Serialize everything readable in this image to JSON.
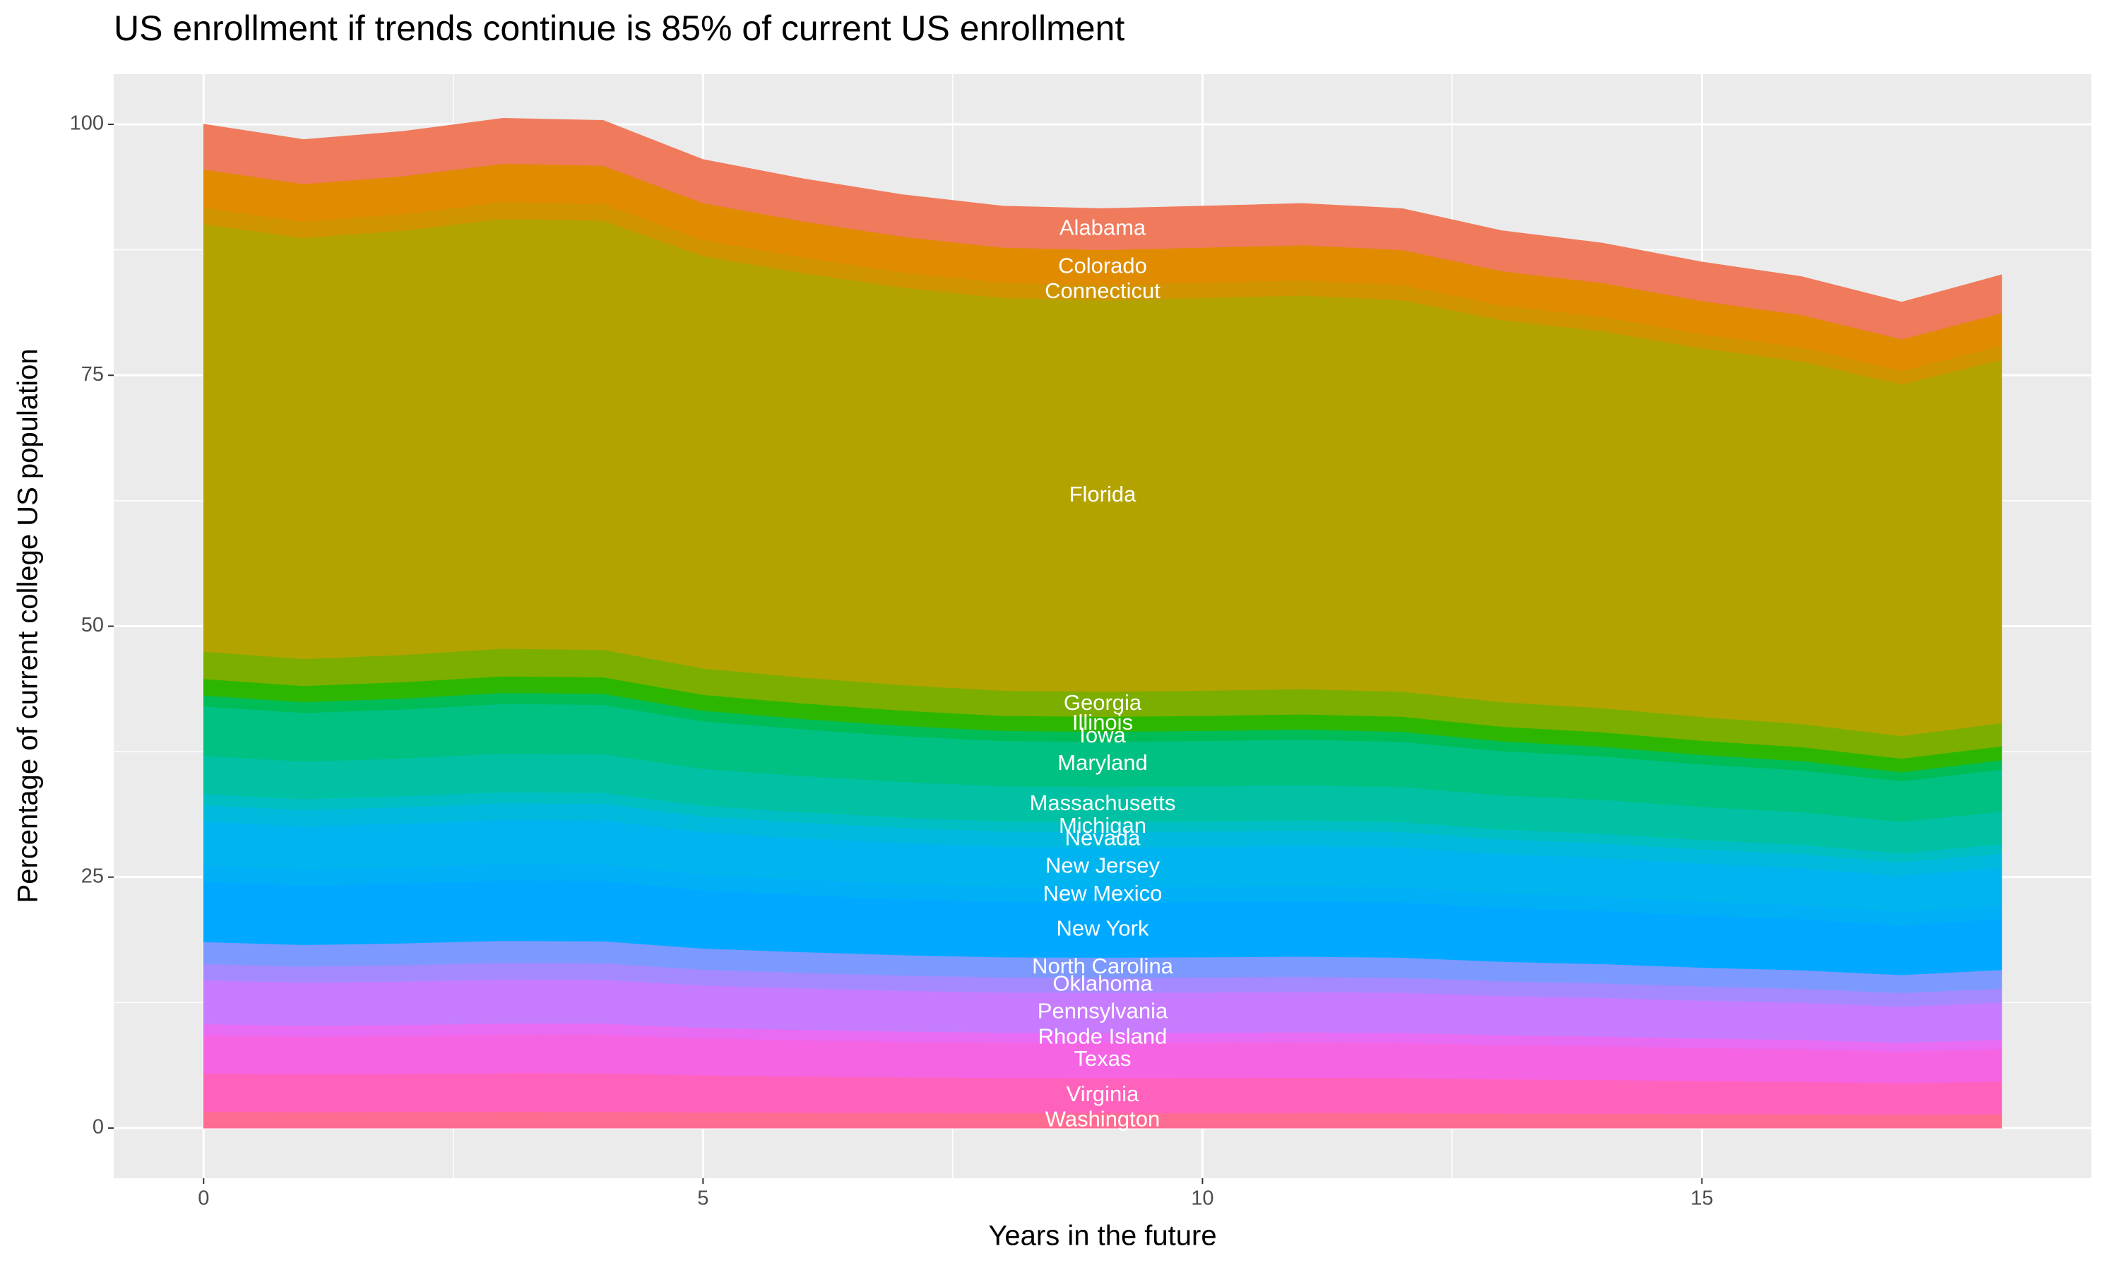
{
  "chart_data": {
    "type": "stacked-area",
    "title": "US enrollment if trends continue is 85% of current US enrollment",
    "x_label": "Years in the future",
    "y_label": "Percentage of current college US population",
    "x": [
      0,
      1,
      2,
      3,
      4,
      5,
      6,
      7,
      8,
      9,
      10,
      11,
      12,
      13,
      14,
      15,
      16,
      17,
      18
    ],
    "xlim": [
      -0.9,
      18.9
    ],
    "xticks": [
      0,
      5,
      10,
      15
    ],
    "ylim": [
      -5,
      105
    ],
    "yticks": [
      0,
      25,
      50,
      75,
      100
    ],
    "grid": true,
    "series": [
      {
        "name": "Washington",
        "color": "#FF6C91",
        "values": [
          1.64,
          1.61,
          1.63,
          1.65,
          1.64,
          1.58,
          1.55,
          1.52,
          1.5,
          1.5,
          1.5,
          1.51,
          1.5,
          1.46,
          1.44,
          1.41,
          1.39,
          1.35,
          1.39
        ]
      },
      {
        "name": "Virginia",
        "color": "#FF62BC",
        "values": [
          3.82,
          3.76,
          3.79,
          3.84,
          3.84,
          3.69,
          3.61,
          3.55,
          3.51,
          3.5,
          3.51,
          3.52,
          3.5,
          3.42,
          3.37,
          3.3,
          3.24,
          3.14,
          3.25
        ]
      },
      {
        "name": "Texas",
        "color": "#F564E3",
        "values": [
          3.82,
          3.76,
          3.79,
          3.84,
          3.84,
          3.69,
          3.61,
          3.55,
          3.51,
          3.5,
          3.51,
          3.52,
          3.5,
          3.42,
          3.37,
          3.3,
          3.24,
          3.14,
          3.25
        ]
      },
      {
        "name": "Rhode Island",
        "color": "#E76BF3",
        "values": [
          1.09,
          1.08,
          1.08,
          1.1,
          1.1,
          1.05,
          1.03,
          1.02,
          1.0,
          1.0,
          1.0,
          1.01,
          1.0,
          0.98,
          0.96,
          0.94,
          0.93,
          0.9,
          0.93
        ]
      },
      {
        "name": "Pennsylvania",
        "color": "#C77CFF",
        "values": [
          4.37,
          4.3,
          4.34,
          4.39,
          4.38,
          4.21,
          4.13,
          4.06,
          4.01,
          4.0,
          4.01,
          4.02,
          4.0,
          3.9,
          3.85,
          3.77,
          3.7,
          3.59,
          3.71
        ]
      },
      {
        "name": "Oklahoma",
        "color": "#A58AFF",
        "values": [
          1.64,
          1.61,
          1.63,
          1.65,
          1.64,
          1.58,
          1.55,
          1.52,
          1.5,
          1.5,
          1.5,
          1.51,
          1.5,
          1.46,
          1.44,
          1.41,
          1.39,
          1.35,
          1.39
        ]
      },
      {
        "name": "North Carolina",
        "color": "#7C99FF",
        "values": [
          2.18,
          2.15,
          2.17,
          2.2,
          2.19,
          2.11,
          2.07,
          2.03,
          2.01,
          2.0,
          2.01,
          2.01,
          2.0,
          1.95,
          1.93,
          1.88,
          1.85,
          1.8,
          1.86
        ]
      },
      {
        "name": "New York",
        "color": "#00A9FF",
        "values": [
          6.0,
          5.91,
          5.96,
          6.04,
          6.03,
          5.79,
          5.68,
          5.58,
          5.52,
          5.5,
          5.52,
          5.53,
          5.5,
          5.37,
          5.3,
          5.18,
          5.09,
          4.94,
          5.1
        ]
      },
      {
        "name": "New Mexico",
        "color": "#00B0F6",
        "values": [
          1.64,
          1.61,
          1.63,
          1.65,
          1.64,
          1.58,
          1.55,
          1.52,
          1.5,
          1.5,
          1.5,
          1.51,
          1.5,
          1.46,
          1.44,
          1.41,
          1.39,
          1.35,
          1.39
        ]
      },
      {
        "name": "New Jersey",
        "color": "#00B4EF",
        "values": [
          4.37,
          4.3,
          4.34,
          4.39,
          4.38,
          4.21,
          4.13,
          4.06,
          4.01,
          4.0,
          4.01,
          4.02,
          4.0,
          3.9,
          3.85,
          3.77,
          3.7,
          3.59,
          3.71
        ]
      },
      {
        "name": "Nevada",
        "color": "#00BADE",
        "values": [
          1.64,
          1.61,
          1.63,
          1.65,
          1.64,
          1.58,
          1.55,
          1.52,
          1.5,
          1.5,
          1.5,
          1.51,
          1.5,
          1.46,
          1.44,
          1.41,
          1.39,
          1.35,
          1.39
        ]
      },
      {
        "name": "Michigan",
        "color": "#00BFC4",
        "values": [
          1.09,
          1.08,
          1.08,
          1.1,
          1.1,
          1.05,
          1.03,
          1.02,
          1.0,
          1.0,
          1.0,
          1.01,
          1.0,
          0.98,
          0.96,
          0.94,
          0.93,
          0.9,
          0.93
        ]
      },
      {
        "name": "Massachusetts",
        "color": "#00C1A3",
        "values": [
          3.82,
          3.76,
          3.79,
          3.84,
          3.84,
          3.69,
          3.61,
          3.55,
          3.51,
          3.5,
          3.51,
          3.52,
          3.5,
          3.42,
          3.37,
          3.3,
          3.24,
          3.14,
          3.25
        ]
      },
      {
        "name": "Maryland",
        "color": "#00C082",
        "values": [
          4.91,
          4.84,
          4.88,
          4.94,
          4.93,
          4.74,
          4.65,
          4.57,
          4.51,
          4.5,
          4.51,
          4.52,
          4.5,
          4.39,
          4.33,
          4.24,
          4.17,
          4.04,
          4.18
        ]
      },
      {
        "name": "Iowa",
        "color": "#00BC56",
        "values": [
          1.09,
          1.08,
          1.08,
          1.1,
          1.1,
          1.05,
          1.03,
          1.02,
          1.0,
          1.0,
          1.0,
          1.01,
          1.0,
          0.98,
          0.96,
          0.94,
          0.93,
          0.9,
          0.93
        ]
      },
      {
        "name": "Illinois",
        "color": "#2DB600",
        "values": [
          1.64,
          1.61,
          1.63,
          1.65,
          1.64,
          1.58,
          1.55,
          1.52,
          1.5,
          1.5,
          1.5,
          1.51,
          1.5,
          1.46,
          1.44,
          1.41,
          1.39,
          1.35,
          1.39
        ]
      },
      {
        "name": "Georgia",
        "color": "#7CAE00",
        "values": [
          2.73,
          2.69,
          2.71,
          2.75,
          2.74,
          2.63,
          2.58,
          2.54,
          2.51,
          2.5,
          2.51,
          2.51,
          2.5,
          2.44,
          2.41,
          2.36,
          2.31,
          2.25,
          2.32
        ]
      },
      {
        "name": "Florida",
        "color": "#B3A300",
        "values": [
          42.58,
          41.94,
          42.28,
          42.83,
          42.75,
          41.09,
          40.28,
          39.6,
          39.13,
          39.0,
          39.13,
          39.21,
          39.0,
          38.06,
          37.55,
          36.74,
          36.11,
          35.04,
          36.19
        ]
      },
      {
        "name": "Connecticut",
        "color": "#CF9400",
        "values": [
          1.64,
          1.61,
          1.63,
          1.65,
          1.64,
          1.58,
          1.55,
          1.52,
          1.5,
          1.5,
          1.5,
          1.51,
          1.5,
          1.46,
          1.44,
          1.41,
          1.39,
          1.35,
          1.39
        ]
      },
      {
        "name": "Colorado",
        "color": "#E08B00",
        "values": [
          3.82,
          3.76,
          3.79,
          3.84,
          3.84,
          3.69,
          3.61,
          3.55,
          3.51,
          3.5,
          3.51,
          3.52,
          3.5,
          3.42,
          3.37,
          3.3,
          3.24,
          3.14,
          3.25
        ]
      },
      {
        "name": "Alabama",
        "color": "#F07A5C",
        "values": [
          4.48,
          4.41,
          4.44,
          4.5,
          4.49,
          4.32,
          4.23,
          4.16,
          4.11,
          4.1,
          4.11,
          4.12,
          4.1,
          4.0,
          3.95,
          3.86,
          3.8,
          3.68,
          3.8
        ]
      }
    ]
  }
}
